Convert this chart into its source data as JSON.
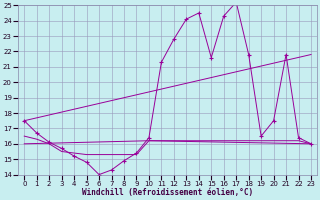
{
  "xlabel": "Windchill (Refroidissement éolien,°C)",
  "xlim": [
    -0.5,
    23.5
  ],
  "ylim": [
    14,
    25
  ],
  "yticks": [
    14,
    15,
    16,
    17,
    18,
    19,
    20,
    21,
    22,
    23,
    24,
    25
  ],
  "xticks": [
    0,
    1,
    2,
    3,
    4,
    5,
    6,
    7,
    8,
    9,
    10,
    11,
    12,
    13,
    14,
    15,
    16,
    17,
    18,
    19,
    20,
    21,
    22,
    23
  ],
  "background_color": "#c8eef0",
  "grid_color": "#9999bb",
  "line_color": "#990099",
  "line1_x": [
    0,
    1,
    2,
    3,
    4,
    5,
    6,
    7,
    8,
    9,
    10,
    11,
    12,
    13,
    14,
    15,
    16,
    17,
    18,
    19,
    20,
    21,
    22,
    23
  ],
  "line1_y": [
    17.5,
    16.7,
    16.1,
    15.7,
    15.2,
    14.8,
    14.0,
    14.3,
    14.9,
    15.4,
    16.4,
    21.3,
    22.8,
    24.1,
    24.5,
    21.6,
    24.3,
    25.2,
    21.8,
    16.5,
    17.5,
    21.8,
    16.4,
    16.0
  ],
  "line2_x": [
    0,
    23
  ],
  "line2_y": [
    17.5,
    21.8
  ],
  "line3_x": [
    0,
    1,
    2,
    3,
    4,
    5,
    6,
    7,
    8,
    9,
    10,
    11,
    12,
    13,
    14,
    15,
    16,
    17,
    18,
    19,
    20,
    21,
    22,
    23
  ],
  "line3_y": [
    16.5,
    16.3,
    16.0,
    15.5,
    15.4,
    15.3,
    15.3,
    15.3,
    15.3,
    15.3,
    16.2,
    16.2,
    16.2,
    16.2,
    16.2,
    16.2,
    16.2,
    16.2,
    16.2,
    16.2,
    16.2,
    16.2,
    16.2,
    16.0
  ],
  "line4_x": [
    0,
    10,
    23
  ],
  "line4_y": [
    16.0,
    16.2,
    16.0
  ]
}
